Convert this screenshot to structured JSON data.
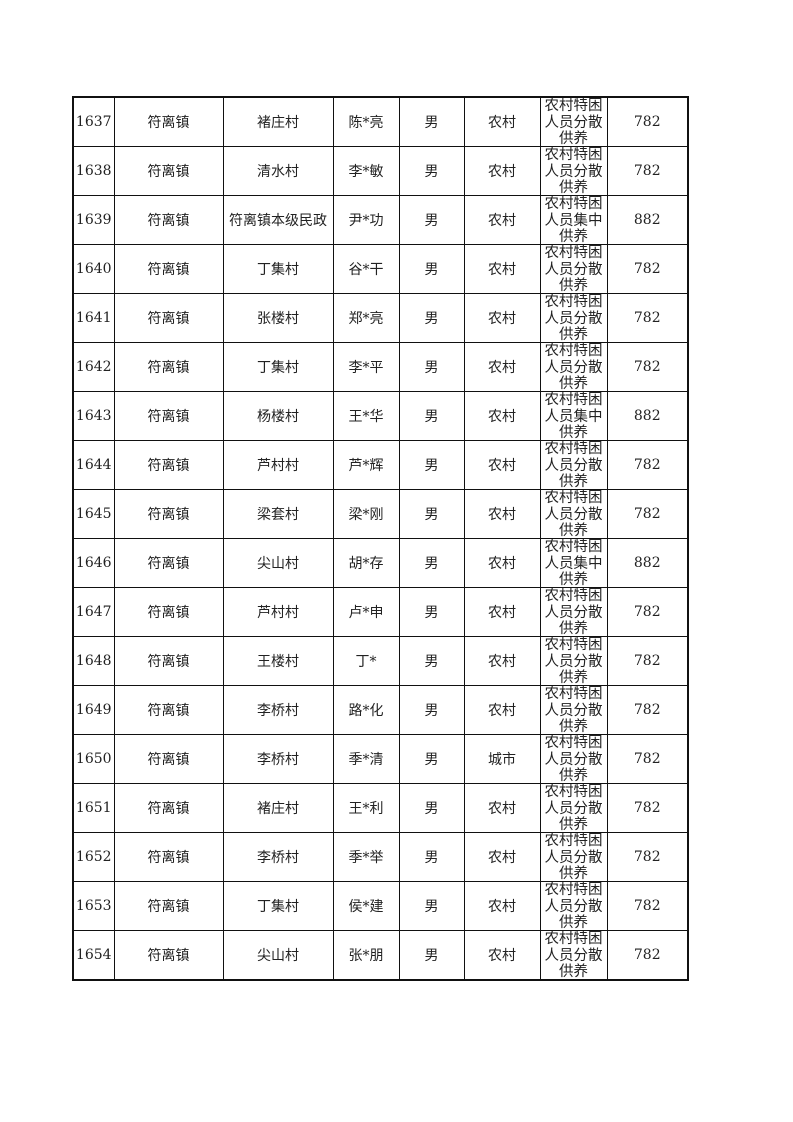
{
  "rows": [
    [
      "1637",
      "符离镇",
      "褚庄村",
      "陈*亮",
      "男",
      "农村",
      "农村特困人员分散供养",
      "782"
    ],
    [
      "1638",
      "符离镇",
      "清水村",
      "李*敏",
      "男",
      "农村",
      "农村特困人员分散供养",
      "782"
    ],
    [
      "1639",
      "符离镇",
      "符离镇本级民政",
      "尹*功",
      "男",
      "农村",
      "农村特困人员集中供养",
      "882"
    ],
    [
      "1640",
      "符离镇",
      "丁集村",
      "谷*干",
      "男",
      "农村",
      "农村特困人员分散供养",
      "782"
    ],
    [
      "1641",
      "符离镇",
      "张楼村",
      "郑*亮",
      "男",
      "农村",
      "农村特困人员分散供养",
      "782"
    ],
    [
      "1642",
      "符离镇",
      "丁集村",
      "李*平",
      "男",
      "农村",
      "农村特困人员分散供养",
      "782"
    ],
    [
      "1643",
      "符离镇",
      "杨楼村",
      "王*华",
      "男",
      "农村",
      "农村特困人员集中供养",
      "882"
    ],
    [
      "1644",
      "符离镇",
      "芦村村",
      "芦*辉",
      "男",
      "农村",
      "农村特困人员分散供养",
      "782"
    ],
    [
      "1645",
      "符离镇",
      "梁套村",
      "梁*刚",
      "男",
      "农村",
      "农村特困人员分散供养",
      "782"
    ],
    [
      "1646",
      "符离镇",
      "尖山村",
      "胡*存",
      "男",
      "农村",
      "农村特困人员集中供养",
      "882"
    ],
    [
      "1647",
      "符离镇",
      "芦村村",
      "卢*申",
      "男",
      "农村",
      "农村特困人员分散供养",
      "782"
    ],
    [
      "1648",
      "符离镇",
      "王楼村",
      "丁*",
      "男",
      "农村",
      "农村特困人员分散供养",
      "782"
    ],
    [
      "1649",
      "符离镇",
      "李桥村",
      "路*化",
      "男",
      "农村",
      "农村特困人员分散供养",
      "782"
    ],
    [
      "1650",
      "符离镇",
      "李桥村",
      "季*清",
      "男",
      "城市",
      "农村特困人员分散供养",
      "782"
    ],
    [
      "1651",
      "符离镇",
      "褚庄村",
      "王*利",
      "男",
      "农村",
      "农村特困人员分散供养",
      "782"
    ],
    [
      "1652",
      "符离镇",
      "李桥村",
      "季*举",
      "男",
      "农村",
      "农村特困人员分散供养",
      "782"
    ],
    [
      "1653",
      "符离镇",
      "丁集村",
      "侯*建",
      "男",
      "农村",
      "农村特困人员分散供养",
      "782"
    ],
    [
      "1654",
      "符离镇",
      "尖山村",
      "张*朋",
      "男",
      "农村",
      "农村特困人员分散供养",
      "782"
    ]
  ]
}
